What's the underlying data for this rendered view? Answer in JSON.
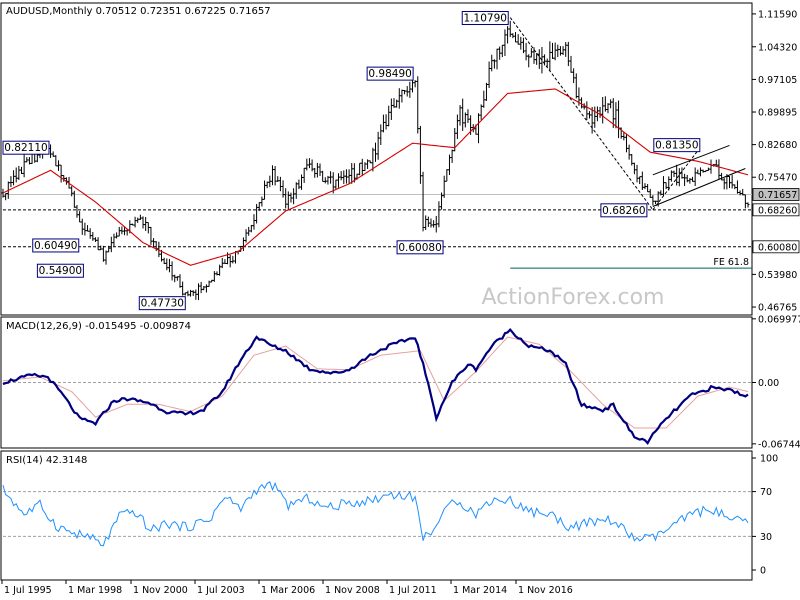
{
  "chart_data": [
    {
      "type": "bar",
      "subtype": "ohlc",
      "header": {
        "symbol": "AUDUSD,Monthly",
        "open": "0.70512",
        "high": "0.72351",
        "low": "0.67225",
        "close": "0.71657"
      },
      "colors": {
        "bars": "#000000",
        "moving_average": "#d40000",
        "background": "#ffffff"
      },
      "ylim": [
        0.45,
        1.14
      ],
      "y_ticks": [
        {
          "v": 1.1159,
          "t": "1.11590"
        },
        {
          "v": 1.0432,
          "t": "1.04320"
        },
        {
          "v": 0.971,
          "t": "0.97105"
        },
        {
          "v": 0.8989,
          "t": "0.89895"
        },
        {
          "v": 0.8268,
          "t": "0.82680"
        },
        {
          "v": 0.7547,
          "t": "0.75470"
        },
        {
          "v": 0.5398,
          "t": "0.53980"
        },
        {
          "v": 0.4676,
          "t": "0.46765"
        }
      ],
      "x_labels": [
        "1 Jul 1995",
        "1 Mar 1998",
        "1 Nov 2000",
        "1 Jul 2003",
        "1 Mar 2006",
        "1 Nov 2008",
        "1 Jul 2011",
        "1 Mar 2014",
        "1 Nov 2016"
      ],
      "price_points": [
        [
          "1995-07",
          0.72
        ],
        [
          "1996-06",
          0.8
        ],
        [
          "1996-12",
          0.81
        ],
        [
          "1997-06",
          0.76
        ],
        [
          "1997-12",
          0.66
        ],
        [
          "1998-06",
          0.61
        ],
        [
          "1998-09",
          0.58
        ],
        [
          "1999-03",
          0.64
        ],
        [
          "1999-12",
          0.66
        ],
        [
          "2000-06",
          0.58
        ],
        [
          "2000-12",
          0.54
        ],
        [
          "2001-04",
          0.49
        ],
        [
          "2001-10",
          0.51
        ],
        [
          "2002-06",
          0.56
        ],
        [
          "2003-01",
          0.59
        ],
        [
          "2003-06",
          0.67
        ],
        [
          "2004-01",
          0.77
        ],
        [
          "2004-06",
          0.7
        ],
        [
          "2005-03",
          0.78
        ],
        [
          "2005-12",
          0.74
        ],
        [
          "2006-06",
          0.76
        ],
        [
          "2007-02",
          0.79
        ],
        [
          "2007-11",
          0.92
        ],
        [
          "2008-07",
          0.96
        ],
        [
          "2008-10",
          0.65
        ],
        [
          "2009-03",
          0.66
        ],
        [
          "2009-12",
          0.9
        ],
        [
          "2010-06",
          0.85
        ],
        [
          "2010-12",
          1.02
        ],
        [
          "2011-07",
          1.07
        ],
        [
          "2012-06",
          1.01
        ],
        [
          "2013-04",
          1.04
        ],
        [
          "2013-09",
          0.92
        ],
        [
          "2014-01",
          0.88
        ],
        [
          "2014-09",
          0.92
        ],
        [
          "2015-06",
          0.77
        ],
        [
          "2016-01",
          0.7
        ],
        [
          "2016-09",
          0.76
        ],
        [
          "2017-04",
          0.75
        ],
        [
          "2017-12",
          0.78
        ],
        [
          "2018-06",
          0.74
        ],
        [
          "2019-01",
          0.7
        ]
      ],
      "moving_average_points": [
        [
          "1995-07",
          0.72
        ],
        [
          "1997-01",
          0.77
        ],
        [
          "1998-06",
          0.7
        ],
        [
          "1999-12",
          0.61
        ],
        [
          "2001-06",
          0.56
        ],
        [
          "2002-12",
          0.59
        ],
        [
          "2004-06",
          0.68
        ],
        [
          "2006-06",
          0.74
        ],
        [
          "2008-06",
          0.83
        ],
        [
          "2009-10",
          0.82
        ],
        [
          "2011-06",
          0.94
        ],
        [
          "2012-12",
          0.95
        ],
        [
          "2014-06",
          0.89
        ],
        [
          "2015-12",
          0.81
        ],
        [
          "2017-06",
          0.79
        ],
        [
          "2019-01",
          0.76
        ]
      ],
      "annotations": [
        {
          "label": "0.82110",
          "date": "1996-10",
          "price": 0.8211
        },
        {
          "label": "0.60490",
          "date": "1998-08",
          "price": 0.6049
        },
        {
          "label": "0.54900",
          "date": "1998-09",
          "price": 0.549
        },
        {
          "label": "0.47730",
          "date": "2001-04",
          "price": 0.4773
        },
        {
          "label": "0.98490",
          "date": "2008-07",
          "price": 0.9849
        },
        {
          "label": "0.60080",
          "date": "2008-10",
          "price": 0.6008
        },
        {
          "label": "1.10790",
          "date": "2011-07",
          "price": 1.1079
        },
        {
          "label": "0.68260",
          "date": "2016-01",
          "price": 0.6826
        },
        {
          "label": "0.81350",
          "date": "2017-06",
          "price": 0.8135
        }
      ],
      "levels": [
        {
          "price": 0.71657,
          "style": "solid",
          "color": "#c0c0c0",
          "label": "0.71657",
          "tag_bg": "#c0c0c0"
        },
        {
          "price": 0.6826,
          "style": "dashed",
          "color": "#000000",
          "label": "0.68260",
          "tag_bg": "#ffffff"
        },
        {
          "price": 0.6008,
          "style": "dashed",
          "color": "#000000",
          "label": "0.60080",
          "tag_bg": "#ffffff"
        },
        {
          "price": 0.5538,
          "style": "solid",
          "color": "#006060",
          "label": "FE 61.8",
          "from": "2011-07"
        }
      ],
      "trendlines": [
        {
          "from": [
            "2011-07",
            1.1079
          ],
          "to": [
            "2016-01",
            0.6826
          ],
          "dashed": true
        },
        {
          "from": [
            "2016-01",
            0.6826
          ],
          "to": [
            "2017-06",
            0.8135
          ],
          "dashed": true
        },
        {
          "from": [
            "2016-01",
            0.69
          ],
          "to": [
            "2018-12",
            0.774
          ],
          "dashed": false
        },
        {
          "from": [
            "2016-01",
            0.76
          ],
          "to": [
            "2018-06",
            0.825
          ],
          "dashed": false
        }
      ],
      "watermark": "ActionForex.com"
    },
    {
      "type": "line",
      "name": "MACD(12,26,9) -0.015495 -0.009874",
      "ylim": [
        -0.072,
        0.072
      ],
      "y_ticks": [
        {
          "v": 0.069977,
          "t": "0.069977"
        },
        {
          "v": 0.0,
          "t": "0.00"
        },
        {
          "v": -0.067448,
          "t": "-0.067448"
        }
      ],
      "colors": {
        "macd": "#000080",
        "signal": "#e8a0a0"
      },
      "macd_points": [
        [
          "1995-07",
          0.0
        ],
        [
          "1996-06",
          0.008
        ],
        [
          "1996-12",
          0.006
        ],
        [
          "1997-06",
          -0.015
        ],
        [
          "1997-12",
          -0.04
        ],
        [
          "1998-06",
          -0.045
        ],
        [
          "1999-01",
          -0.02
        ],
        [
          "1999-06",
          -0.018
        ],
        [
          "2000-02",
          -0.022
        ],
        [
          "2000-09",
          -0.032
        ],
        [
          "2001-04",
          -0.035
        ],
        [
          "2001-11",
          -0.03
        ],
        [
          "2002-06",
          -0.01
        ],
        [
          "2003-01",
          0.025
        ],
        [
          "2003-07",
          0.05
        ],
        [
          "2004-01",
          0.04
        ],
        [
          "2004-06",
          0.035
        ],
        [
          "2005-03",
          0.015
        ],
        [
          "2005-12",
          0.01
        ],
        [
          "2006-06",
          0.014
        ],
        [
          "2007-02",
          0.03
        ],
        [
          "2007-09",
          0.04
        ],
        [
          "2008-07",
          0.05
        ],
        [
          "2008-10",
          0.02
        ],
        [
          "2009-03",
          -0.038
        ],
        [
          "2009-09",
          0.0
        ],
        [
          "2010-03",
          0.02
        ],
        [
          "2010-06",
          0.015
        ],
        [
          "2010-12",
          0.04
        ],
        [
          "2011-07",
          0.058
        ],
        [
          "2012-02",
          0.04
        ],
        [
          "2012-10",
          0.035
        ],
        [
          "2013-04",
          0.02
        ],
        [
          "2013-10",
          -0.025
        ],
        [
          "2014-06",
          -0.03
        ],
        [
          "2014-10",
          -0.025
        ],
        [
          "2015-06",
          -0.06
        ],
        [
          "2015-11",
          -0.065
        ],
        [
          "2016-06",
          -0.04
        ],
        [
          "2017-03",
          -0.015
        ],
        [
          "2017-11",
          -0.006
        ],
        [
          "2018-06",
          -0.008
        ],
        [
          "2019-01",
          -0.015
        ]
      ],
      "signal_points": [
        [
          "1995-07",
          0.002
        ],
        [
          "1996-09",
          0.006
        ],
        [
          "1997-09",
          -0.01
        ],
        [
          "1998-06",
          -0.038
        ],
        [
          "1999-06",
          -0.024
        ],
        [
          "2000-06",
          -0.024
        ],
        [
          "2001-06",
          -0.032
        ],
        [
          "2002-06",
          -0.015
        ],
        [
          "2003-06",
          0.03
        ],
        [
          "2004-06",
          0.04
        ],
        [
          "2005-06",
          0.015
        ],
        [
          "2006-06",
          0.014
        ],
        [
          "2007-06",
          0.03
        ],
        [
          "2008-09",
          0.035
        ],
        [
          "2009-06",
          -0.02
        ],
        [
          "2010-06",
          0.012
        ],
        [
          "2011-06",
          0.05
        ],
        [
          "2012-06",
          0.042
        ],
        [
          "2013-06",
          0.012
        ],
        [
          "2014-06",
          -0.024
        ],
        [
          "2015-06",
          -0.05
        ],
        [
          "2016-06",
          -0.05
        ],
        [
          "2017-06",
          -0.015
        ],
        [
          "2018-06",
          -0.005
        ],
        [
          "2019-01",
          -0.01
        ]
      ]
    },
    {
      "type": "line",
      "name": "RSI(14) 42.3148",
      "ylim": [
        0,
        100
      ],
      "y_ticks": [
        {
          "v": 100,
          "t": "100"
        },
        {
          "v": 70,
          "t": "70"
        },
        {
          "v": 30,
          "t": "30"
        },
        {
          "v": 0,
          "t": "0"
        }
      ],
      "guides": [
        70,
        30
      ],
      "colors": {
        "rsi": "#1e90ff"
      },
      "rsi_points": [
        [
          "1995-07",
          72
        ],
        [
          "1996-03",
          50
        ],
        [
          "1996-09",
          58
        ],
        [
          "1997-03",
          40
        ],
        [
          "1997-09",
          33
        ],
        [
          "1998-03",
          30
        ],
        [
          "1998-09",
          22
        ],
        [
          "1999-03",
          48
        ],
        [
          "1999-09",
          52
        ],
        [
          "2000-03",
          35
        ],
        [
          "2000-09",
          42
        ],
        [
          "2001-04",
          38
        ],
        [
          "2002-01",
          45
        ],
        [
          "2002-07",
          65
        ],
        [
          "2003-01",
          55
        ],
        [
          "2003-07",
          72
        ],
        [
          "2004-01",
          76
        ],
        [
          "2004-07",
          58
        ],
        [
          "2005-03",
          64
        ],
        [
          "2005-09",
          55
        ],
        [
          "2006-06",
          60
        ],
        [
          "2007-02",
          62
        ],
        [
          "2007-10",
          68
        ],
        [
          "2008-07",
          65
        ],
        [
          "2008-10",
          28
        ],
        [
          "2009-03",
          40
        ],
        [
          "2009-10",
          64
        ],
        [
          "2010-06",
          50
        ],
        [
          "2010-12",
          63
        ],
        [
          "2011-07",
          62
        ],
        [
          "2012-03",
          52
        ],
        [
          "2012-10",
          50
        ],
        [
          "2013-06",
          38
        ],
        [
          "2014-01",
          42
        ],
        [
          "2014-09",
          45
        ],
        [
          "2015-06",
          28
        ],
        [
          "2016-01",
          28
        ],
        [
          "2016-09",
          40
        ],
        [
          "2017-04",
          50
        ],
        [
          "2017-11",
          55
        ],
        [
          "2018-06",
          45
        ],
        [
          "2019-01",
          42
        ]
      ]
    }
  ]
}
